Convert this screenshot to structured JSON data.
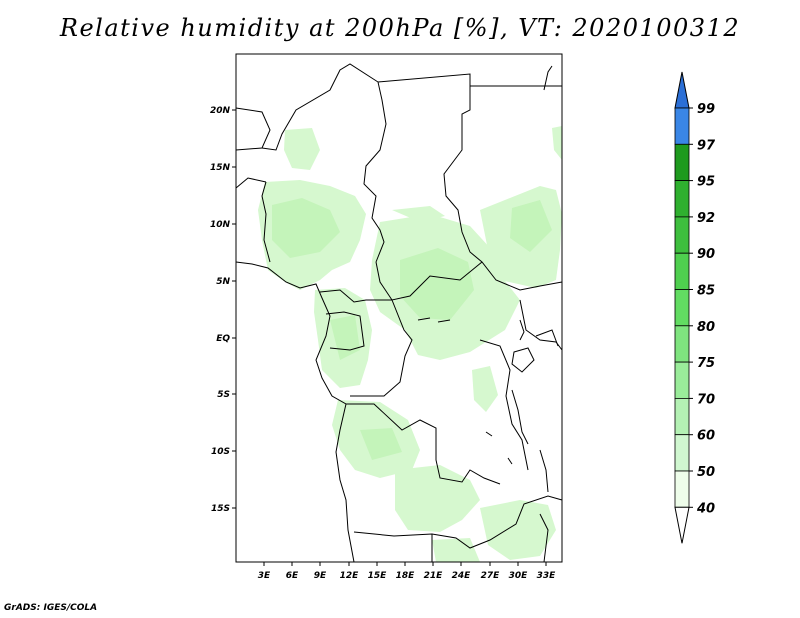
{
  "title": "Relative humidity at 200hPa [%], VT: 2020100312",
  "credit": "GrADS: IGES/COLA",
  "colors": {
    "frame": "#000000",
    "border": "#000000",
    "humid_light": "#d8f9d2",
    "humid_mid": "#bff5b6"
  },
  "axes": {
    "lat_labels": [
      "20N",
      "15N",
      "10N",
      "5N",
      "EQ",
      "5S",
      "10S",
      "15S"
    ],
    "lon_labels": [
      "3E",
      "6E",
      "9E",
      "12E",
      "15E",
      "18E",
      "21E",
      "24E",
      "27E",
      "30E",
      "33E"
    ]
  },
  "colorbar": {
    "levels": [
      "99",
      "97",
      "95",
      "92",
      "90",
      "85",
      "80",
      "75",
      "70",
      "60",
      "50",
      "40"
    ],
    "colors": [
      "#2b6fd6",
      "#3a86e6",
      "#1e9a1e",
      "#2fb02f",
      "#3ebf3e",
      "#4fcf4f",
      "#62dc62",
      "#7fe47f",
      "#9aec9a",
      "#b4f1b4",
      "#d0f7d0",
      "#eefdea"
    ],
    "under_color": "#ffffff"
  }
}
